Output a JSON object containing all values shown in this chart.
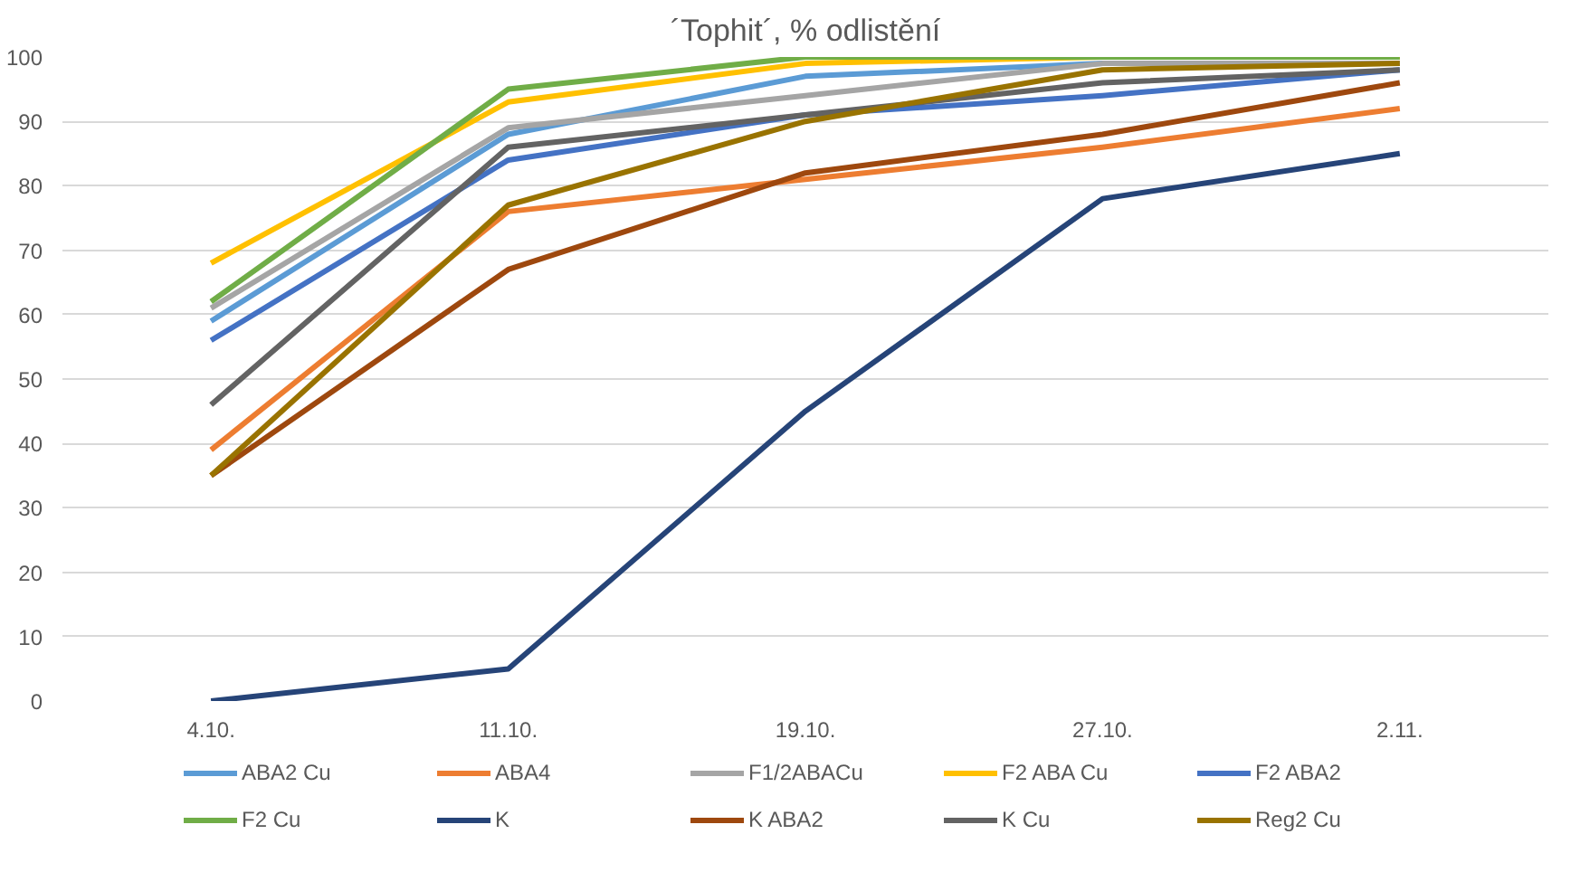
{
  "chart_data": {
    "type": "line",
    "title": "´Tophit´, % odlistění",
    "categories": [
      "4.10.",
      "11.10.",
      "19.10.",
      "27.10.",
      "2.11."
    ],
    "ylim": [
      0,
      100
    ],
    "yticks": [
      0,
      10,
      20,
      30,
      40,
      50,
      60,
      70,
      80,
      90,
      100
    ],
    "grid": "y",
    "legend": "bottom",
    "marker": "none",
    "line_style": "solid",
    "series": [
      {
        "name": "ABA2 Cu",
        "color": "#5b9bd5",
        "values": [
          59,
          88,
          97,
          99,
          99
        ]
      },
      {
        "name": "ABA4",
        "color": "#ed7d31",
        "values": [
          39,
          76,
          81,
          86,
          92
        ]
      },
      {
        "name": "F1/2ABACu",
        "color": "#a5a5a5",
        "values": [
          61,
          89,
          94,
          99,
          99
        ]
      },
      {
        "name": "F2 ABA Cu",
        "color": "#ffc000",
        "values": [
          68,
          93,
          99,
          100,
          100
        ]
      },
      {
        "name": "F2 ABA2",
        "color": "#4472c4",
        "values": [
          56,
          84,
          91,
          94,
          98
        ]
      },
      {
        "name": "F2 Cu",
        "color": "#70ad47",
        "values": [
          62,
          95,
          100,
          100,
          100
        ]
      },
      {
        "name": "K",
        "color": "#264478",
        "values": [
          0,
          5,
          45,
          78,
          85
        ]
      },
      {
        "name": "K ABA2",
        "color": "#9e480e",
        "values": [
          35,
          67,
          82,
          88,
          96
        ]
      },
      {
        "name": "K Cu",
        "color": "#636363",
        "values": [
          46,
          86,
          91,
          96,
          98
        ]
      },
      {
        "name": "Reg2 Cu",
        "color": "#997300",
        "values": [
          35,
          77,
          90,
          98,
          99
        ]
      }
    ]
  }
}
